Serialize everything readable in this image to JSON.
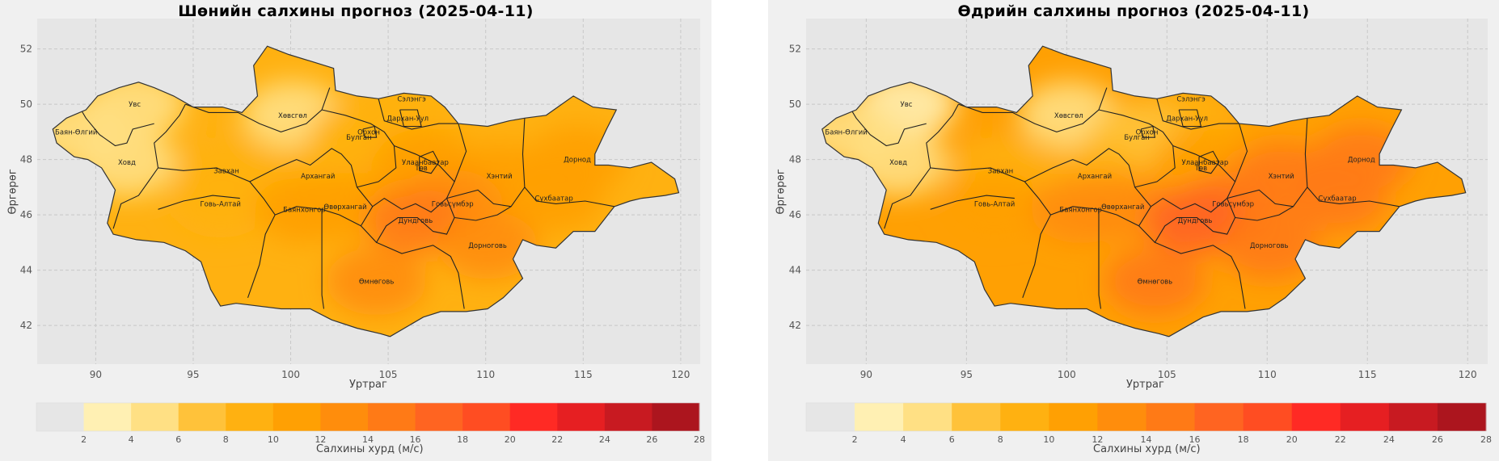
{
  "chart_data": [
    {
      "type": "heatmap",
      "title": "Шөнийн салхины прогноз (2025-04-11)",
      "xlabel": "Уртраг",
      "ylabel": "Өргөрөг",
      "xlim": [
        87,
        121
      ],
      "ylim": [
        40.6,
        53.1
      ],
      "xticks": [
        90,
        95,
        100,
        105,
        110,
        115,
        120
      ],
      "yticks": [
        42,
        44,
        46,
        48,
        50,
        52
      ],
      "grid": true,
      "provinces": [
        {
          "name": "Увс",
          "lon": 92.0,
          "lat": 50.0,
          "level": 2
        },
        {
          "name": "Баян-Өлгий",
          "lon": 89.0,
          "lat": 49.0,
          "level": 2
        },
        {
          "name": "Ховд",
          "lon": 91.6,
          "lat": 47.9,
          "level": 2
        },
        {
          "name": "Хөвсгөл",
          "lon": 100.1,
          "lat": 49.6,
          "level": 2
        },
        {
          "name": "Завхан",
          "lon": 96.7,
          "lat": 47.6,
          "level": 4
        },
        {
          "name": "Говь-Алтай",
          "lon": 96.4,
          "lat": 46.4,
          "level": 4
        },
        {
          "name": "Сэлэнгэ",
          "lon": 106.2,
          "lat": 50.2,
          "level": 4
        },
        {
          "name": "Орхон",
          "lon": 104.0,
          "lat": 49.0,
          "level": 4
        },
        {
          "name": "Дархан-Уул",
          "lon": 106.0,
          "lat": 49.5,
          "level": 4
        },
        {
          "name": "Булган",
          "lon": 103.5,
          "lat": 48.8,
          "level": 4
        },
        {
          "name": "Архангай",
          "lon": 101.4,
          "lat": 47.4,
          "level": 4
        },
        {
          "name": "Улаанбаатар",
          "lon": 106.9,
          "lat": 47.9,
          "level": 5
        },
        {
          "name": "Төв",
          "lon": 106.7,
          "lat": 47.7,
          "level": 5
        },
        {
          "name": "Хэнтий",
          "lon": 110.7,
          "lat": 47.4,
          "level": 5
        },
        {
          "name": "Дорнод",
          "lon": 114.7,
          "lat": 48.0,
          "level": 5
        },
        {
          "name": "Сүхбаатар",
          "lon": 113.5,
          "lat": 46.6,
          "level": 5
        },
        {
          "name": "Баянхонгор",
          "lon": 100.7,
          "lat": 46.2,
          "level": 5
        },
        {
          "name": "Өвөрхангай",
          "lon": 102.8,
          "lat": 46.3,
          "level": 5
        },
        {
          "name": "Говьсүмбэр",
          "lon": 108.3,
          "lat": 46.4,
          "level": 6
        },
        {
          "name": "Дундговь",
          "lon": 106.4,
          "lat": 45.8,
          "level": 7
        },
        {
          "name": "Дорноговь",
          "lon": 110.1,
          "lat": 44.9,
          "level": 6
        },
        {
          "name": "Өмнөговь",
          "lon": 104.4,
          "lat": 43.6,
          "level": 6
        }
      ],
      "colorbar": {
        "label": "Салхины хурд (м/с)",
        "ticks": [
          "2",
          "4",
          "6",
          "8",
          "10",
          "12",
          "14",
          "16",
          "18",
          "20",
          "22",
          "24",
          "26",
          "28"
        ],
        "colors": [
          "#e6e6e6",
          "#fff0b3",
          "#ffe084",
          "#ffc23a",
          "#ffb111",
          "#ffa003",
          "#ff8d0c",
          "#ff7a16",
          "#ff6421",
          "#ff4d22",
          "#ff2a24",
          "#e61f22",
          "#c81a21",
          "#ac151e"
        ]
      }
    },
    {
      "type": "heatmap",
      "title": "Өдрийн салхины прогноз (2025-04-11)",
      "xlabel": "Уртраг",
      "ylabel": "Өргөрөг",
      "xlim": [
        87,
        121
      ],
      "ylim": [
        40.6,
        53.1
      ],
      "xticks": [
        90,
        95,
        100,
        105,
        110,
        115,
        120
      ],
      "yticks": [
        42,
        44,
        46,
        48,
        50,
        52
      ],
      "grid": true,
      "provinces": [
        {
          "name": "Увс",
          "lon": 92.0,
          "lat": 50.0,
          "level": 1
        },
        {
          "name": "Баян-Өлгий",
          "lon": 89.0,
          "lat": 49.0,
          "level": 2
        },
        {
          "name": "Ховд",
          "lon": 91.6,
          "lat": 47.9,
          "level": 2
        },
        {
          "name": "Хөвсгөл",
          "lon": 100.1,
          "lat": 49.6,
          "level": 2
        },
        {
          "name": "Завхан",
          "lon": 96.7,
          "lat": 47.6,
          "level": 4
        },
        {
          "name": "Говь-Алтай",
          "lon": 96.4,
          "lat": 46.4,
          "level": 5
        },
        {
          "name": "Сэлэнгэ",
          "lon": 106.2,
          "lat": 50.2,
          "level": 5
        },
        {
          "name": "Орхон",
          "lon": 104.0,
          "lat": 49.0,
          "level": 4
        },
        {
          "name": "Дархан-Уул",
          "lon": 106.0,
          "lat": 49.5,
          "level": 4
        },
        {
          "name": "Булган",
          "lon": 103.5,
          "lat": 48.8,
          "level": 3
        },
        {
          "name": "Архангай",
          "lon": 101.4,
          "lat": 47.4,
          "level": 4
        },
        {
          "name": "Улаанбаатар",
          "lon": 106.9,
          "lat": 47.9,
          "level": 5
        },
        {
          "name": "Төв",
          "lon": 106.7,
          "lat": 47.7,
          "level": 5
        },
        {
          "name": "Хэнтий",
          "lon": 110.7,
          "lat": 47.4,
          "level": 7
        },
        {
          "name": "Дорнод",
          "lon": 114.7,
          "lat": 48.0,
          "level": 7
        },
        {
          "name": "Сүхбаатар",
          "lon": 113.5,
          "lat": 46.6,
          "level": 7
        },
        {
          "name": "Баянхонгор",
          "lon": 100.7,
          "lat": 46.2,
          "level": 6
        },
        {
          "name": "Өвөрхангай",
          "lon": 102.8,
          "lat": 46.3,
          "level": 6
        },
        {
          "name": "Говьсүмбэр",
          "lon": 108.3,
          "lat": 46.4,
          "level": 7
        },
        {
          "name": "Дундговь",
          "lon": 106.4,
          "lat": 45.8,
          "level": 8
        },
        {
          "name": "Дорноговь",
          "lon": 110.1,
          "lat": 44.9,
          "level": 7
        },
        {
          "name": "Өмнөговь",
          "lon": 104.4,
          "lat": 43.6,
          "level": 7
        }
      ],
      "colorbar": {
        "label": "Салхины хурд (м/с)",
        "ticks": [
          "2",
          "4",
          "6",
          "8",
          "10",
          "12",
          "14",
          "16",
          "18",
          "20",
          "22",
          "24",
          "26",
          "28"
        ],
        "colors": [
          "#e6e6e6",
          "#fff0b3",
          "#ffe084",
          "#ffc23a",
          "#ffb111",
          "#ffa003",
          "#ff8d0c",
          "#ff7a16",
          "#ff6421",
          "#ff4d22",
          "#ff2a24",
          "#e61f22",
          "#c81a21",
          "#ac151e"
        ]
      }
    }
  ]
}
